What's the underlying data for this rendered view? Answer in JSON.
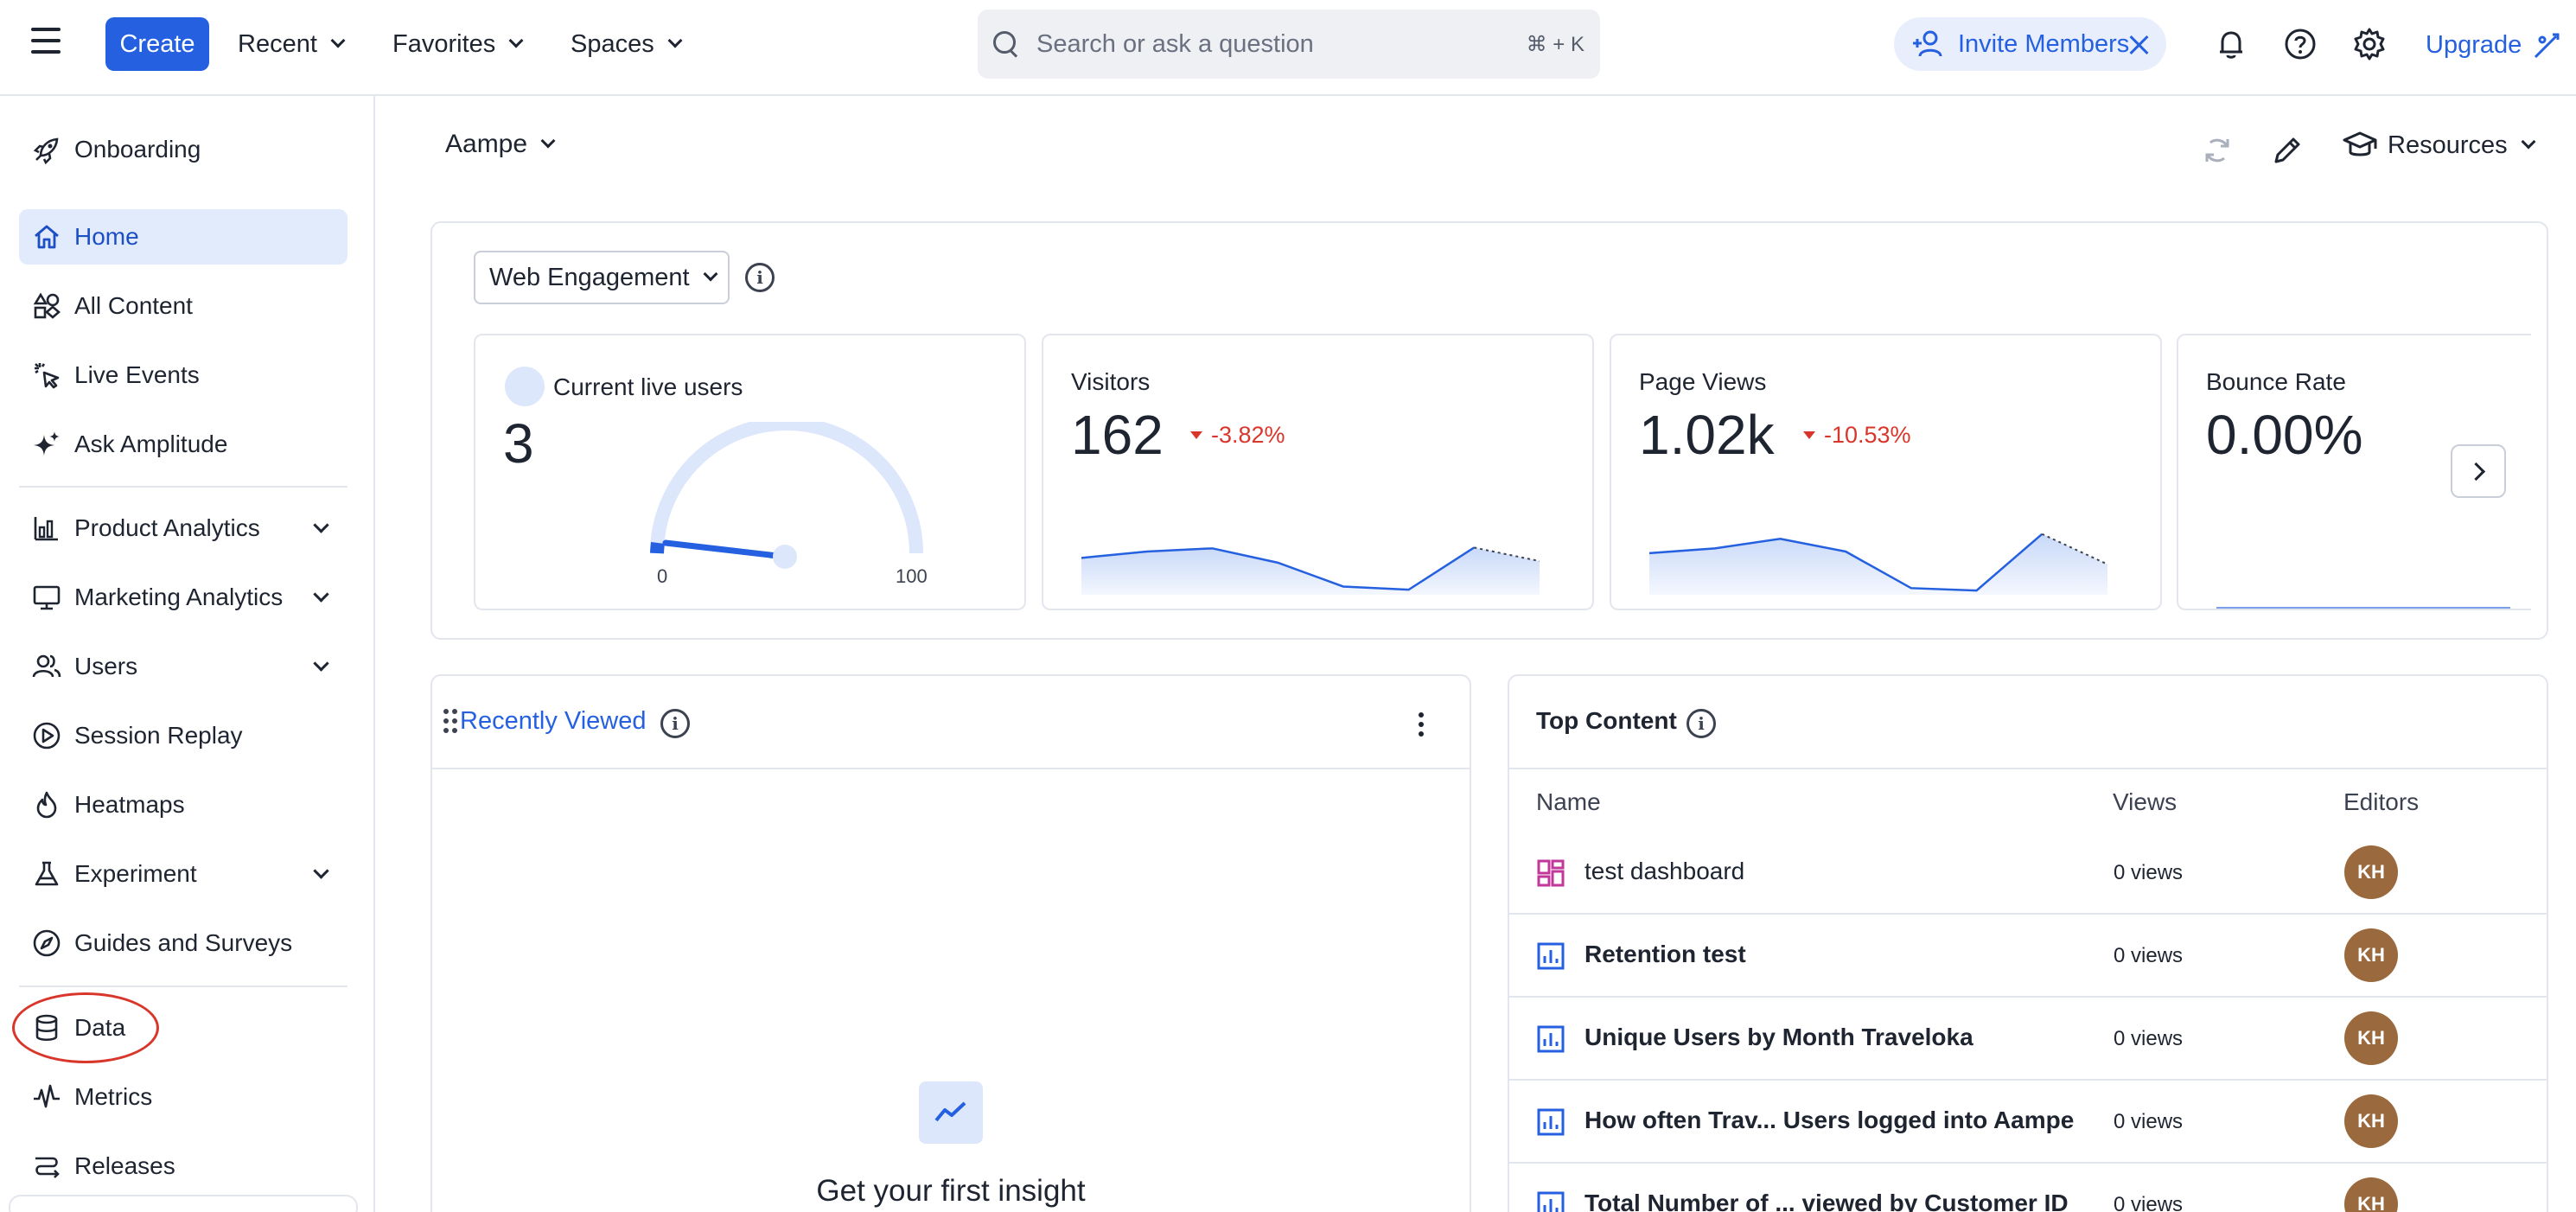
{
  "topbar": {
    "create_label": "Create",
    "nav": [
      {
        "label": "Recent"
      },
      {
        "label": "Favorites"
      },
      {
        "label": "Spaces"
      }
    ],
    "search_placeholder": "Search or ask a question",
    "search_shortcut": "⌘ + K",
    "invite_label": "Invite Members",
    "upgrade_label": "Upgrade"
  },
  "sidebar": {
    "items": [
      {
        "label": "Onboarding",
        "icon": "rocket-icon"
      },
      {
        "label": "Home",
        "icon": "home-icon",
        "active": true
      },
      {
        "label": "All Content",
        "icon": "shapes-icon"
      },
      {
        "label": "Live Events",
        "icon": "click-icon"
      },
      {
        "label": "Ask Amplitude",
        "icon": "sparkle-icon"
      },
      {
        "label": "Product Analytics",
        "icon": "chart-icon",
        "expandable": true
      },
      {
        "label": "Marketing Analytics",
        "icon": "monitor-icon",
        "expandable": true
      },
      {
        "label": "Users",
        "icon": "users-icon",
        "expandable": true
      },
      {
        "label": "Session Replay",
        "icon": "play-icon"
      },
      {
        "label": "Heatmaps",
        "icon": "flame-icon"
      },
      {
        "label": "Experiment",
        "icon": "flask-icon",
        "expandable": true
      },
      {
        "label": "Guides and Surveys",
        "icon": "compass-icon"
      },
      {
        "label": "Data",
        "icon": "database-icon"
      },
      {
        "label": "Metrics",
        "icon": "pulse-icon"
      },
      {
        "label": "Releases",
        "icon": "releases-icon"
      }
    ]
  },
  "main": {
    "project_label": "Aampe",
    "resources_label": "Resources",
    "web_engagement": {
      "select_label": "Web Engagement",
      "cards": [
        {
          "title": "Current live users",
          "value": "3",
          "gauge_min": "0",
          "gauge_max": "100",
          "gauge_value": 3
        },
        {
          "title": "Visitors",
          "value": "162",
          "delta": "-3.82%",
          "spark": [
            0.42,
            0.5,
            0.54,
            0.36,
            0.06,
            0.02,
            0.55,
            0.38
          ]
        },
        {
          "title": "Page Views",
          "value": "1.02k",
          "delta": "-10.53%",
          "spark": [
            0.48,
            0.54,
            0.66,
            0.5,
            0.04,
            0.01,
            0.72,
            0.34
          ]
        },
        {
          "title": "Bounce Rate",
          "value": "0.00%"
        }
      ]
    },
    "recently_viewed": {
      "title": "Recently Viewed",
      "empty_text": "Get your first insight"
    },
    "top_content": {
      "title": "Top Content",
      "columns": [
        "Name",
        "Views",
        "Editors"
      ],
      "rows": [
        {
          "name": "test dashboard",
          "views": "0 views",
          "editor": "KH",
          "type": "dashboard"
        },
        {
          "name": "Retention test",
          "views": "0 views",
          "editor": "KH",
          "type": "chart"
        },
        {
          "name": "Unique Users by Month Traveloka",
          "views": "0 views",
          "editor": "KH",
          "type": "chart"
        },
        {
          "name": "How often Trav... Users logged into Aampe",
          "views": "0 views",
          "editor": "KH",
          "type": "chart"
        },
        {
          "name": "Total Number of ... viewed by Customer ID",
          "views": "0 views",
          "editor": "KH",
          "type": "chart"
        }
      ]
    }
  },
  "colors": {
    "accent": "#2460e0",
    "active_bg": "#e2ebfc",
    "negative": "#d9362b",
    "avatar": "#9a6a3e"
  }
}
